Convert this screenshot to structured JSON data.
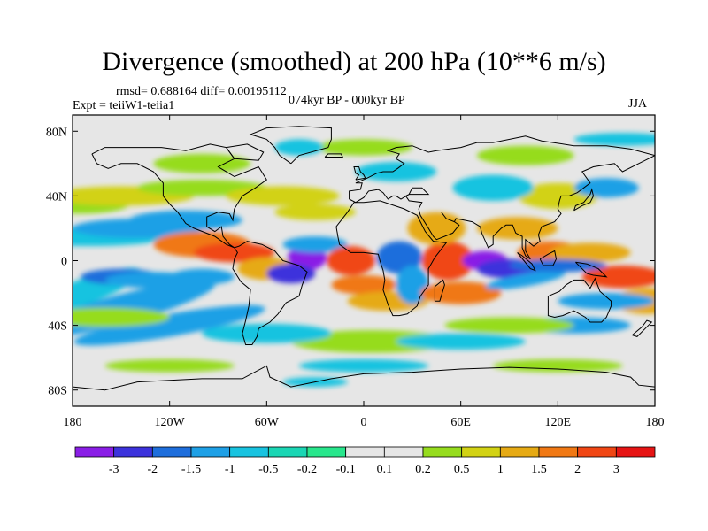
{
  "title": "Divergence (smoothed) at 200 hPa (10**6 m/s)",
  "stats": {
    "rmsd_label": "rmsd=",
    "rmsd": "0.688164",
    "diff_label": "diff=",
    "diff": "0.00195112"
  },
  "experiment": "Expt = teiiW1-teiia1",
  "period": "074kyr BP - 000kyr BP",
  "season": "JJA",
  "map": {
    "projection": "cylindrical equidistant",
    "lon_range": [
      -180,
      180
    ],
    "lat_range": [
      -90,
      90
    ],
    "x_tick_labels": [
      "180",
      "120W",
      "60W",
      "0",
      "60E",
      "120E",
      "180"
    ],
    "x_tick_values": [
      -180,
      -120,
      -60,
      0,
      60,
      120,
      180
    ],
    "y_tick_labels": [
      "80N",
      "40N",
      "0",
      "40S",
      "80S"
    ],
    "y_tick_values": [
      80,
      40,
      0,
      -40,
      -80
    ],
    "background_color": "#e6e6e6",
    "coastline_color": "#000000"
  },
  "colorbar": {
    "tick_labels": [
      "-3",
      "-2",
      "-1.5",
      "-1",
      "-0.5",
      "-0.2",
      "-0.1",
      "0.1",
      "0.2",
      "0.5",
      "1",
      "1.5",
      "2",
      "3"
    ],
    "colors": [
      "#8a1ee6",
      "#3c32dc",
      "#1e6edc",
      "#1ea0e6",
      "#18c3e0",
      "#1ad6b4",
      "#28e68c",
      "#e6e6e6",
      "#96dc1e",
      "#d2d214",
      "#e6aa14",
      "#f07814",
      "#f04614",
      "#e61414"
    ]
  },
  "chart_data": {
    "type": "heatmap",
    "title": "Divergence (smoothed) at 200 hPa (10**6 m/s)",
    "xlabel": "",
    "ylabel": "",
    "x_ticks": [
      "180",
      "120W",
      "60W",
      "0",
      "60E",
      "120E",
      "180"
    ],
    "y_ticks": [
      "80N",
      "40N",
      "0",
      "40S",
      "80S"
    ],
    "contour_levels": [
      -3,
      -2,
      -1.5,
      -1,
      -0.5,
      -0.2,
      -0.1,
      0.1,
      0.2,
      0.5,
      1,
      1.5,
      2,
      3
    ],
    "features": [
      {
        "lon": -35,
        "lat": 2,
        "value": -3
      },
      {
        "lon": 75,
        "lat": 0,
        "value": -3
      },
      {
        "lon": -8,
        "lat": 0,
        "value": 2.5
      },
      {
        "lon": 52,
        "lat": 0,
        "value": 2.5
      },
      {
        "lon": -95,
        "lat": 10,
        "value": 2
      },
      {
        "lon": 160,
        "lat": -10,
        "value": 2
      },
      {
        "lon": -150,
        "lat": -15,
        "value": -1
      },
      {
        "lon": 120,
        "lat": -3,
        "value": -1
      },
      {
        "lon": 45,
        "lat": 25,
        "value": 1
      },
      {
        "lon": 10,
        "lat": -20,
        "value": 1.5
      }
    ]
  }
}
